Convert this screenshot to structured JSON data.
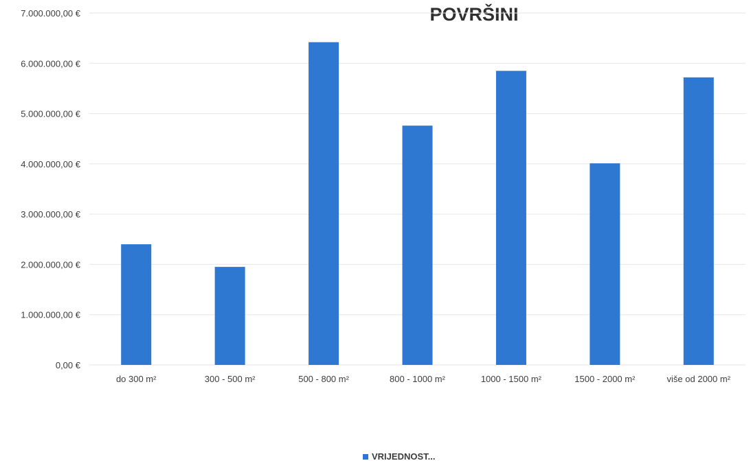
{
  "chart_data": {
    "type": "bar",
    "title": "POVRŠINI",
    "xlabel": "",
    "ylabel": "",
    "categories": [
      "do 300 m²",
      "300 - 500 m²",
      "500 - 800 m²",
      "800 - 1000 m²",
      "1000 - 1500 m²",
      "1500 - 2000 m²",
      "više od 2000 m²"
    ],
    "series": [
      {
        "name": "VRIJEDNOST...",
        "color": "#2e78d2",
        "values": [
          2400000,
          1950000,
          6420000,
          4760000,
          5850000,
          4010000,
          5720000
        ]
      }
    ],
    "ylim": [
      0,
      7000000
    ],
    "yticks": [
      0,
      1000000,
      2000000,
      3000000,
      4000000,
      5000000,
      6000000,
      7000000
    ],
    "ytick_labels": [
      "0,00 €",
      "1.000.000,00 €",
      "2.000.000,00 €",
      "3.000.000,00 €",
      "4.000.000,00 €",
      "5.000.000,00 €",
      "6.000.000,00 €",
      "7.000.000,00 €"
    ],
    "grid": true,
    "legend_position": "bottom"
  }
}
